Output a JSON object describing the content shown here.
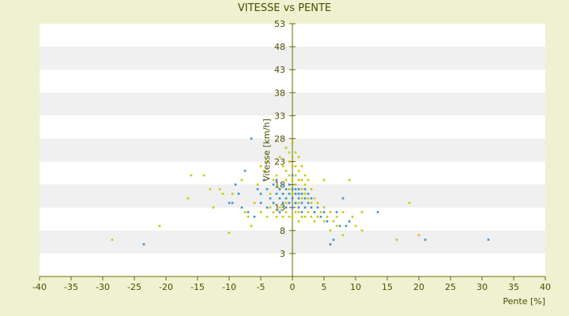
{
  "chart_data": {
    "type": "scatter",
    "title": "VITESSE vs PENTE",
    "xlabel": "Pente [%]",
    "ylabel": "Vitesse [km/h]",
    "xlim": [
      -40,
      40
    ],
    "ylim": [
      -2,
      53
    ],
    "x_ticks": [
      -40,
      -35,
      -30,
      -25,
      -20,
      -15,
      -10,
      -5,
      0,
      5,
      10,
      15,
      20,
      25,
      30,
      35,
      40
    ],
    "y_ticks": [
      3,
      8,
      13,
      18,
      23,
      28,
      33,
      38,
      43,
      48,
      53
    ],
    "grid": "horizontal bands",
    "legend": "none",
    "colors": {
      "background": "#eef2d0",
      "plot_band_light": "#ffffff",
      "plot_band_dark": "#f0f0f0",
      "axis": "#6b6b00",
      "text": "#4d4d00",
      "series_yellow": "#c8c800",
      "series_blue": "#3a8fd0"
    },
    "series": [
      {
        "color": "#c8c800",
        "points": [
          [
            -28.5,
            6
          ],
          [
            -21,
            9
          ],
          [
            -16,
            20
          ],
          [
            -16.5,
            15
          ],
          [
            -14,
            20
          ],
          [
            -13,
            17
          ],
          [
            -12.5,
            13
          ],
          [
            -11.5,
            17
          ],
          [
            -11,
            16
          ],
          [
            -10,
            7.5
          ],
          [
            -9.5,
            16
          ],
          [
            -8,
            19
          ],
          [
            -7.5,
            12
          ],
          [
            -7,
            11
          ],
          [
            -6.5,
            9
          ],
          [
            -6,
            14
          ],
          [
            -5.5,
            18
          ],
          [
            -5,
            12
          ],
          [
            -5,
            22
          ],
          [
            -4.5,
            21
          ],
          [
            -4,
            23
          ],
          [
            -4,
            11
          ],
          [
            -3.5,
            16
          ],
          [
            -3.5,
            13
          ],
          [
            -3,
            19
          ],
          [
            -3,
            12
          ],
          [
            -2.5,
            20
          ],
          [
            -2.5,
            11
          ],
          [
            -2,
            17
          ],
          [
            -2,
            13
          ],
          [
            -2,
            24
          ],
          [
            -1.5,
            22
          ],
          [
            -1.5,
            16
          ],
          [
            -1.5,
            11
          ],
          [
            -1,
            26
          ],
          [
            -1,
            21
          ],
          [
            -1,
            19
          ],
          [
            -1,
            14
          ],
          [
            -1,
            12
          ],
          [
            -0.5,
            25
          ],
          [
            -0.5,
            23
          ],
          [
            -0.5,
            20
          ],
          [
            -0.5,
            17
          ],
          [
            -0.5,
            11
          ],
          [
            0,
            27
          ],
          [
            0,
            24
          ],
          [
            0,
            22
          ],
          [
            0,
            19
          ],
          [
            0,
            16
          ],
          [
            0,
            13
          ],
          [
            0,
            11
          ],
          [
            0.5,
            25
          ],
          [
            0.5,
            22
          ],
          [
            0.5,
            20
          ],
          [
            0.5,
            18
          ],
          [
            0.5,
            16
          ],
          [
            0.5,
            14
          ],
          [
            0.5,
            12
          ],
          [
            1,
            24
          ],
          [
            1,
            21
          ],
          [
            1,
            19
          ],
          [
            1,
            16
          ],
          [
            1,
            14
          ],
          [
            1,
            12
          ],
          [
            1,
            10
          ],
          [
            1.5,
            22
          ],
          [
            1.5,
            19
          ],
          [
            1.5,
            17
          ],
          [
            1.5,
            15
          ],
          [
            1.5,
            11
          ],
          [
            2,
            20
          ],
          [
            2,
            18
          ],
          [
            2,
            16
          ],
          [
            2,
            13
          ],
          [
            2,
            11
          ],
          [
            2.5,
            19
          ],
          [
            2.5,
            15
          ],
          [
            2.5,
            12
          ],
          [
            3,
            17
          ],
          [
            3,
            14
          ],
          [
            3,
            11
          ],
          [
            3.5,
            15
          ],
          [
            3.5,
            12
          ],
          [
            3.5,
            10
          ],
          [
            4,
            14
          ],
          [
            4,
            11
          ],
          [
            4.5,
            12
          ],
          [
            5,
            19
          ],
          [
            5,
            13
          ],
          [
            5,
            10
          ],
          [
            5.5,
            11
          ],
          [
            6,
            12
          ],
          [
            6,
            8
          ],
          [
            6.5,
            10
          ],
          [
            7,
            11
          ],
          [
            7,
            9
          ],
          [
            8,
            12
          ],
          [
            8,
            7
          ],
          [
            9,
            10
          ],
          [
            9,
            19
          ],
          [
            9.5,
            11
          ],
          [
            10,
            9
          ],
          [
            11,
            12
          ],
          [
            11,
            8
          ],
          [
            16.5,
            6
          ],
          [
            18.5,
            14
          ],
          [
            20,
            7
          ]
        ]
      },
      {
        "color": "#3a8fd0",
        "points": [
          [
            -23.5,
            5
          ],
          [
            -10,
            14
          ],
          [
            -9.5,
            14
          ],
          [
            -9,
            18
          ],
          [
            -8.5,
            16
          ],
          [
            -8,
            13
          ],
          [
            -7.5,
            21
          ],
          [
            -7,
            12
          ],
          [
            -6.5,
            28
          ],
          [
            -6,
            11
          ],
          [
            -5.5,
            17
          ],
          [
            -5,
            14
          ],
          [
            -5,
            16
          ],
          [
            -4.5,
            19
          ],
          [
            -4,
            13
          ],
          [
            -4,
            17
          ],
          [
            -3.5,
            15
          ],
          [
            -3,
            18
          ],
          [
            -3,
            14
          ],
          [
            -2.5,
            16
          ],
          [
            -2.5,
            19
          ],
          [
            -2,
            15
          ],
          [
            -2,
            17
          ],
          [
            -2,
            12
          ],
          [
            -1.5,
            18
          ],
          [
            -1.5,
            14
          ],
          [
            -1.5,
            16
          ],
          [
            -1,
            17
          ],
          [
            -1,
            15
          ],
          [
            -1,
            13
          ],
          [
            -0.5,
            16
          ],
          [
            -0.5,
            18
          ],
          [
            -0.5,
            14
          ],
          [
            0,
            17
          ],
          [
            0,
            15
          ],
          [
            0,
            13
          ],
          [
            0,
            20
          ],
          [
            0.5,
            16
          ],
          [
            0.5,
            17
          ],
          [
            0.5,
            14
          ],
          [
            1,
            16
          ],
          [
            1,
            15
          ],
          [
            1,
            17
          ],
          [
            1,
            13
          ],
          [
            1.5,
            16
          ],
          [
            1.5,
            14
          ],
          [
            1.5,
            12
          ],
          [
            2,
            15
          ],
          [
            2,
            17
          ],
          [
            2,
            13
          ],
          [
            2.5,
            14
          ],
          [
            2.5,
            16
          ],
          [
            3,
            13
          ],
          [
            3,
            15
          ],
          [
            3.5,
            12
          ],
          [
            4,
            13
          ],
          [
            4.5,
            11
          ],
          [
            5,
            12
          ],
          [
            5.5,
            10
          ],
          [
            6,
            5
          ],
          [
            6.5,
            6
          ],
          [
            7,
            12
          ],
          [
            7.5,
            9
          ],
          [
            8,
            15
          ],
          [
            8.5,
            9
          ],
          [
            9,
            10
          ],
          [
            13.5,
            12
          ],
          [
            21,
            6
          ],
          [
            31,
            6
          ]
        ]
      }
    ]
  }
}
